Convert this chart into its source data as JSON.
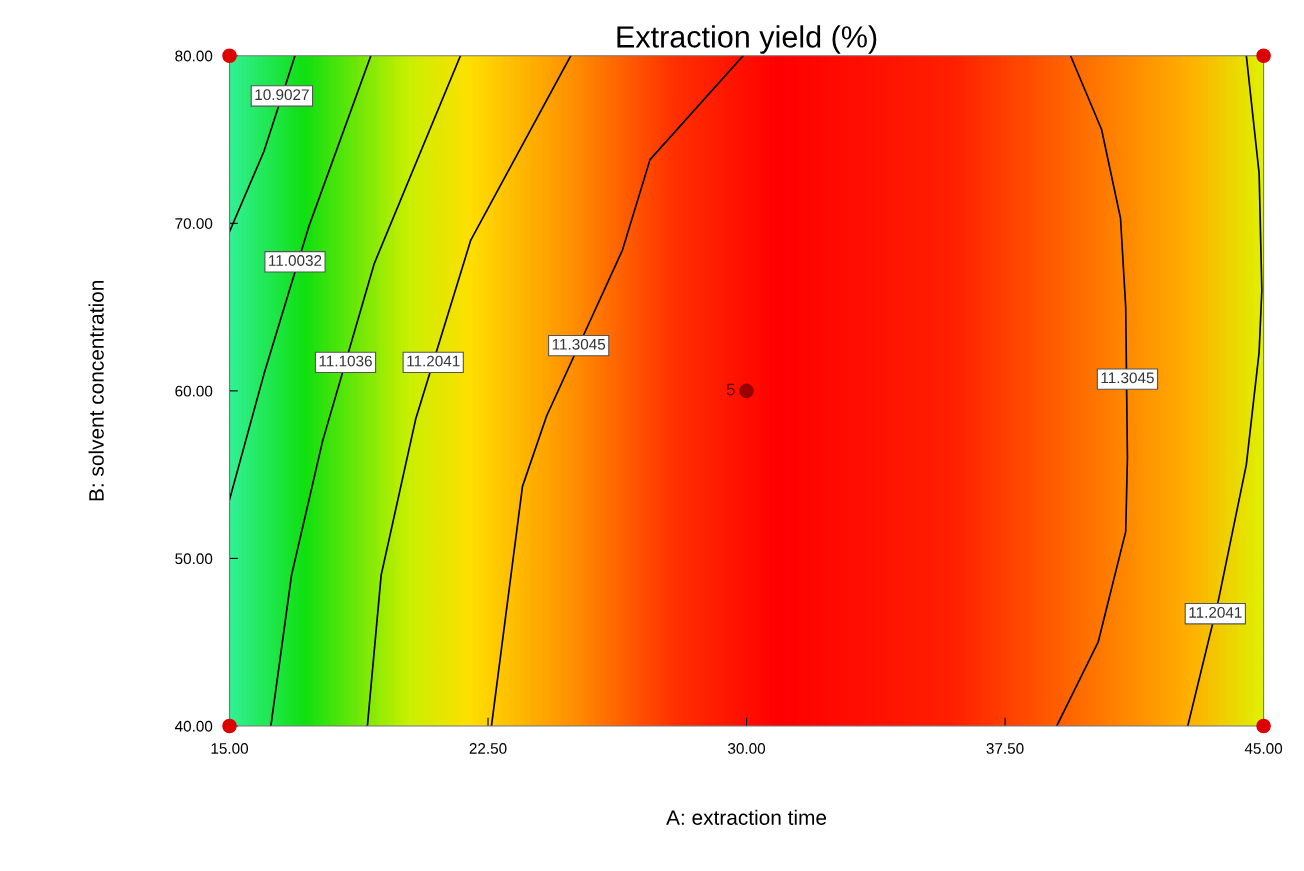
{
  "chart_data": {
    "type": "line",
    "title": "Extraction yield (%)",
    "xlabel": "A: extraction time",
    "ylabel": "B: solvent concentration",
    "xlim": [
      15,
      45
    ],
    "ylim": [
      40,
      80
    ],
    "xticks": [
      {
        "value": 15,
        "label": "15.00"
      },
      {
        "value": 22.5,
        "label": "22.50"
      },
      {
        "value": 30,
        "label": "30.00"
      },
      {
        "value": 37.5,
        "label": "37.50"
      },
      {
        "value": 45,
        "label": "45.00"
      }
    ],
    "yticks": [
      {
        "value": 40,
        "label": "40.00"
      },
      {
        "value": 50,
        "label": "50.00"
      },
      {
        "value": 60,
        "label": "60.00"
      },
      {
        "value": 70,
        "label": "70.00"
      },
      {
        "value": 80,
        "label": "80.00"
      }
    ],
    "grid": false,
    "legend": false,
    "line_style": "solid",
    "marker": "none",
    "series": [
      {
        "color": "#000000",
        "x": [
          15,
          16.0,
          16.9
        ],
        "values": [
          69.5,
          74.3,
          80
        ]
      },
      {
        "color": "#000000",
        "x": [
          15,
          16.0,
          17.3,
          19.1
        ],
        "values": [
          53.5,
          61.0,
          69.8,
          80
        ]
      },
      {
        "color": "#000000",
        "x": [
          16.2,
          16.8,
          17.7,
          19.2,
          21.7
        ],
        "values": [
          40,
          49.0,
          57.0,
          67.6,
          80
        ]
      },
      {
        "color": "#000000",
        "x": [
          19.0,
          19.4,
          20.4,
          22.0,
          24.9
        ],
        "values": [
          40,
          49.0,
          58.3,
          69.0,
          80
        ]
      },
      {
        "color": "#000000",
        "x": [
          22.6,
          23.5,
          24.2,
          26.4,
          27.2,
          29.9
        ],
        "values": [
          40,
          54.3,
          58.5,
          68.4,
          73.8,
          80
        ]
      },
      {
        "color": "#000000",
        "x": [
          39.0,
          40.2,
          41.0,
          41.05,
          41.0,
          40.85,
          40.3,
          39.4
        ],
        "values": [
          40,
          45.0,
          51.6,
          56.0,
          65.0,
          70.3,
          75.6,
          80
        ]
      },
      {
        "color": "#000000",
        "x": [
          42.8,
          43.7,
          44.5,
          44.87,
          44.95,
          44.87,
          44.5
        ],
        "values": [
          40,
          47.6,
          55.6,
          62.3,
          66.0,
          73.0,
          80
        ]
      },
      {
        "type": "scatter",
        "marker": "circle",
        "color": "#dd0000",
        "x": [
          15,
          15,
          45,
          45
        ],
        "values": [
          40,
          80,
          40,
          80
        ]
      },
      {
        "type": "scatter",
        "marker": "circle",
        "color": "#990000",
        "x": [
          30
        ],
        "values": [
          60
        ]
      }
    ],
    "annotations": [
      {
        "text": "10.9027",
        "x": 16.52,
        "y": 77.6
      },
      {
        "text": "11.0032",
        "x": 16.9,
        "y": 67.7
      },
      {
        "text": "11.1036",
        "x": 18.365,
        "y": 61.7
      },
      {
        "text": "11.2041",
        "x": 20.91,
        "y": 61.7
      },
      {
        "text": "11.3045",
        "x": 25.13,
        "y": 62.7
      },
      {
        "text": "11.3045",
        "x": 41.05,
        "y": 60.7
      },
      {
        "text": "11.2041",
        "x": 43.6,
        "y": 46.7
      },
      {
        "text": "5",
        "x": 30,
        "y": 60
      }
    ]
  }
}
